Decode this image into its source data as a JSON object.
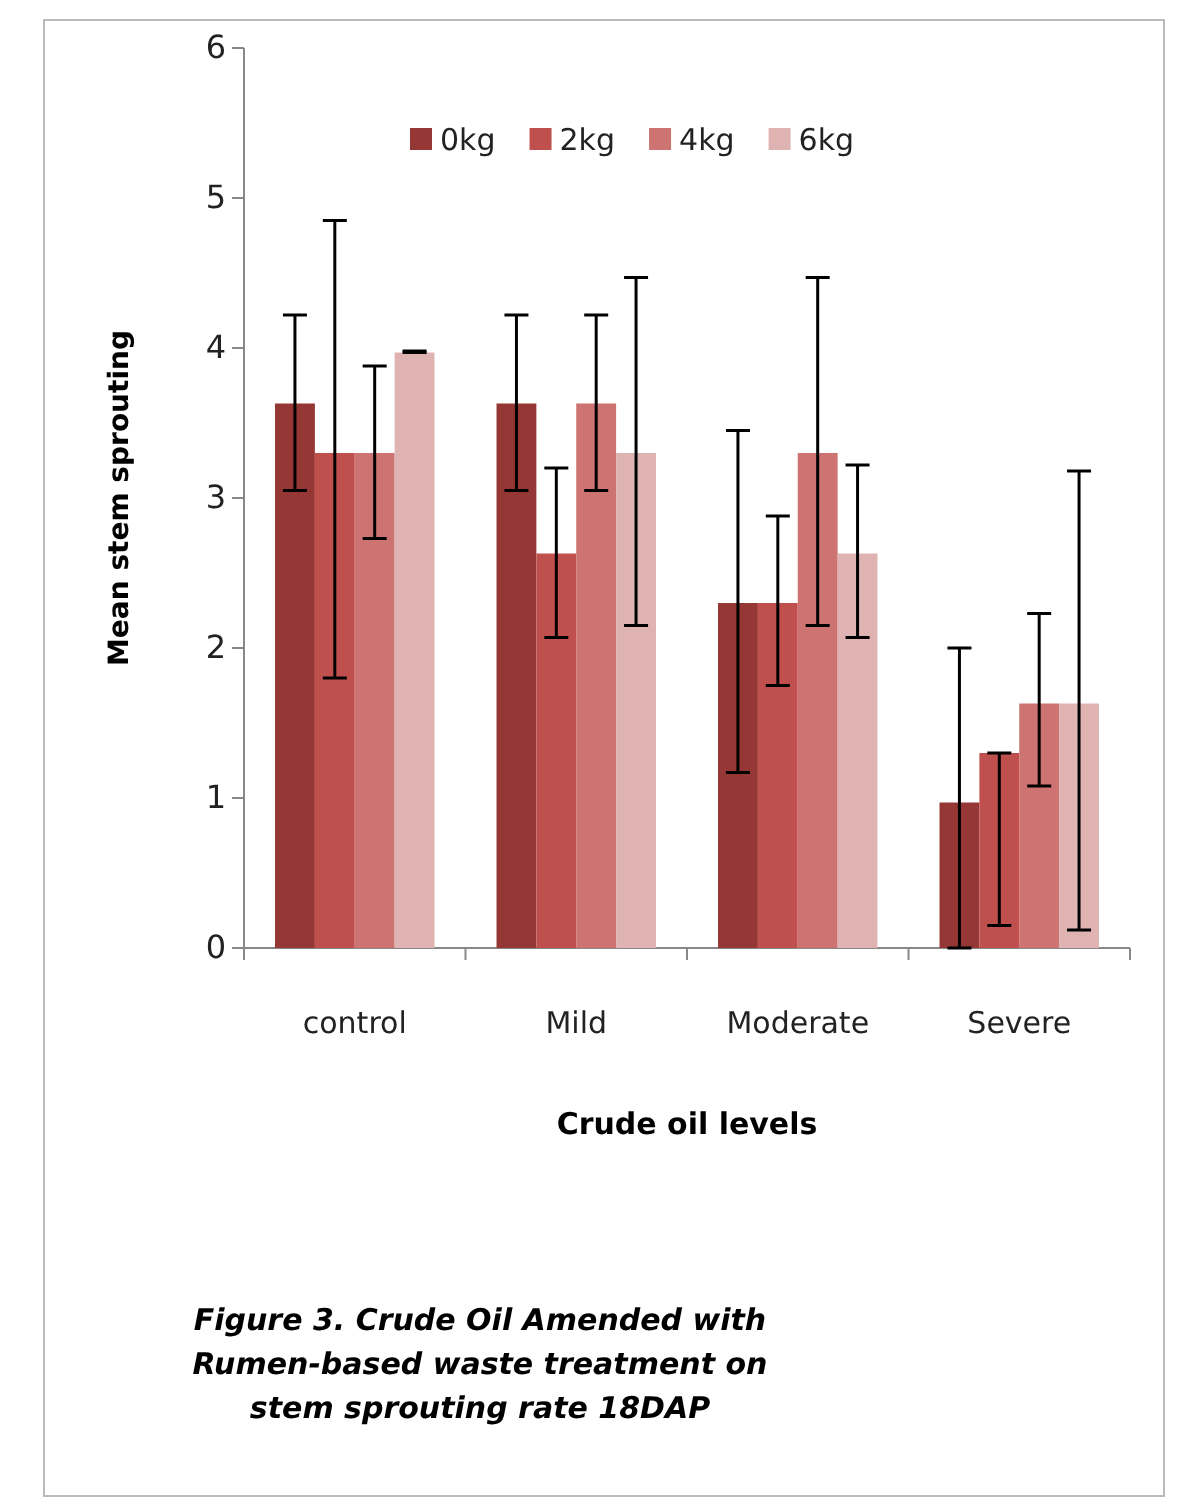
{
  "chart_data": {
    "type": "bar",
    "xlabel": "Crude oil levels",
    "ylabel": "Mean stem sprouting",
    "categories": [
      "control",
      "Mild",
      "Moderate",
      "Severe"
    ],
    "series": [
      {
        "name": "0kg",
        "color": "#953735",
        "values": [
          3.63,
          3.63,
          2.3,
          0.97
        ],
        "errors": [
          [
            3.05,
            4.22
          ],
          [
            3.05,
            4.22
          ],
          [
            1.17,
            3.45
          ],
          [
            0,
            2.0
          ]
        ]
      },
      {
        "name": "2kg",
        "color": "#c0504d",
        "values": [
          3.3,
          2.63,
          2.3,
          1.3
        ],
        "errors": [
          [
            1.8,
            4.85
          ],
          [
            2.07,
            3.2
          ],
          [
            1.75,
            2.88
          ],
          [
            0.15,
            1.3
          ]
        ]
      },
      {
        "name": "4kg",
        "color": "#cd7371",
        "values": [
          3.3,
          3.63,
          3.3,
          1.63
        ],
        "errors": [
          [
            2.73,
            3.88
          ],
          [
            3.05,
            4.22
          ],
          [
            2.15,
            4.47
          ],
          [
            1.08,
            2.23
          ]
        ]
      },
      {
        "name": "6kg",
        "color": "#e0b3b3",
        "values": [
          3.97,
          3.3,
          2.63,
          1.63
        ],
        "errors": [
          [
            3.97,
            3.98
          ],
          [
            2.15,
            4.47
          ],
          [
            2.07,
            3.22
          ],
          [
            0.12,
            3.18
          ]
        ]
      }
    ],
    "ylim": [
      0,
      6
    ],
    "yticks": [
      0,
      1,
      2,
      3,
      4,
      5,
      6
    ],
    "legend": "top",
    "grid": false,
    "annotations": [
      "Figure 3. Crude Oil Amended  with Rumen-based waste treatment  on stem sprouting rate 18DAP"
    ]
  }
}
